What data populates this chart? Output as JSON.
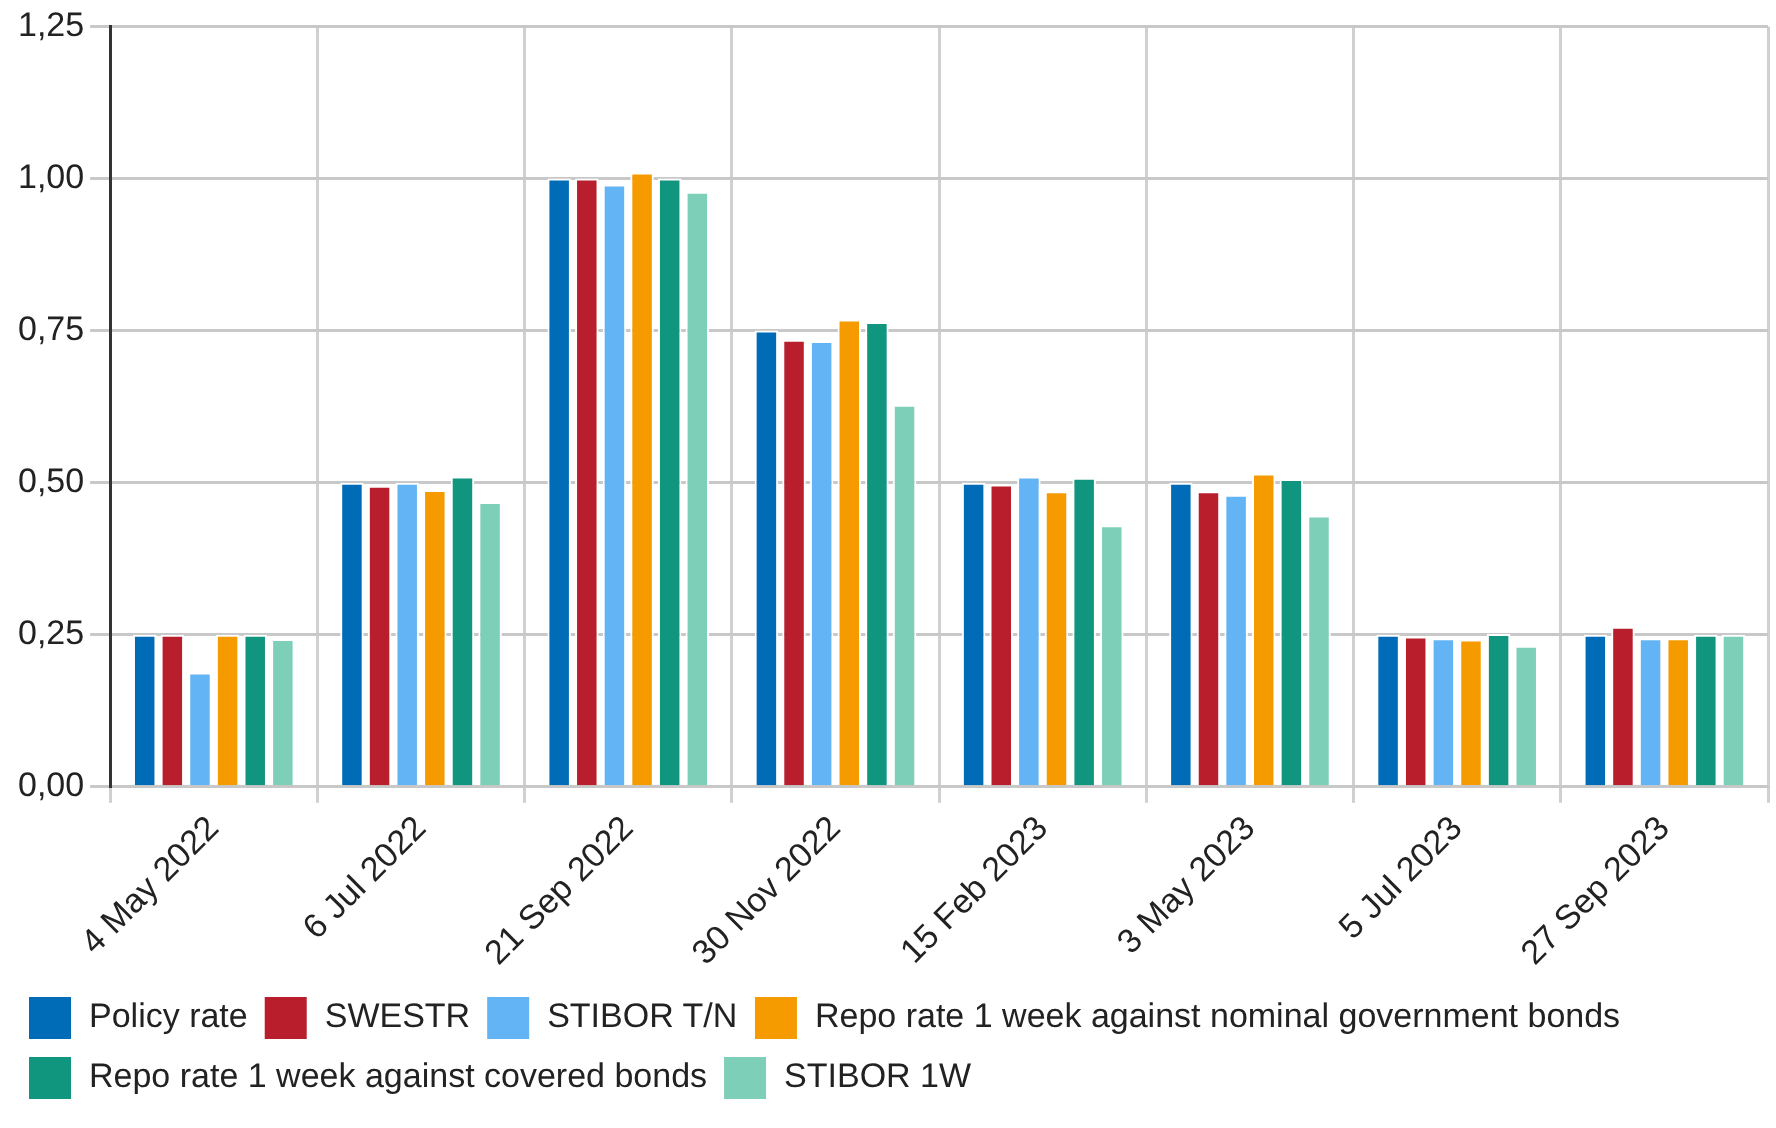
{
  "chart_data": {
    "type": "bar",
    "categories": [
      "4 May 2022",
      "6 Jul 2022",
      "21 Sep 2022",
      "30 Nov 2022",
      "15 Feb 2023",
      "3 May 2023",
      "5 Jul 2023",
      "27 Sep 2023"
    ],
    "series": [
      {
        "name": "Policy rate",
        "color": "#006cb7",
        "values": [
          0.25,
          0.5,
          1.0,
          0.75,
          0.5,
          0.5,
          0.25,
          0.25
        ]
      },
      {
        "name": "SWESTR",
        "color": "#b81e2c",
        "values": [
          0.25,
          0.495,
          1.0,
          0.735,
          0.497,
          0.486,
          0.247,
          0.263
        ]
      },
      {
        "name": "STIBOR T/N",
        "color": "#62b4f4",
        "values": [
          0.188,
          0.5,
          0.99,
          0.733,
          0.51,
          0.48,
          0.244,
          0.244
        ]
      },
      {
        "name": "Repo rate 1 week against nominal government bonds",
        "color": "#f59b00",
        "values": [
          0.25,
          0.488,
          1.01,
          0.768,
          0.486,
          0.515,
          0.242,
          0.244
        ]
      },
      {
        "name": "Repo rate 1 week against covered bonds",
        "color": "#10957f",
        "values": [
          0.25,
          0.51,
          1.0,
          0.764,
          0.508,
          0.506,
          0.251,
          0.25
        ]
      },
      {
        "name": "STIBOR 1W",
        "color": "#7ecfb8",
        "values": [
          0.243,
          0.468,
          0.978,
          0.628,
          0.43,
          0.446,
          0.232,
          0.25
        ]
      }
    ],
    "ylim": [
      0,
      1.25
    ],
    "yticks": [
      {
        "value": 0,
        "label": "0,00"
      },
      {
        "value": 0.25,
        "label": "0,25"
      },
      {
        "value": 0.5,
        "label": "0,50"
      },
      {
        "value": 0.75,
        "label": "0,75"
      },
      {
        "value": 1.0,
        "label": "1,00"
      },
      {
        "value": 1.25,
        "label": "1,25"
      }
    ],
    "grid": true,
    "legend": "bottom"
  }
}
